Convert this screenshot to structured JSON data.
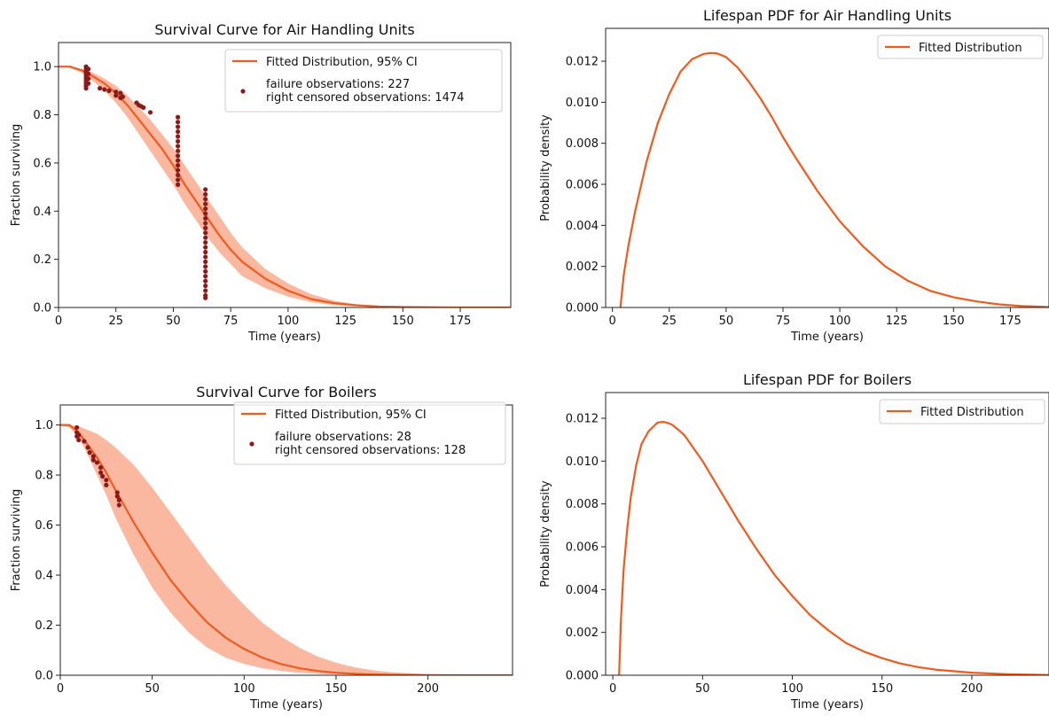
{
  "colors": {
    "fit_line": "#f05a1e",
    "ci_band": "#fbb8a0",
    "points": "#8b1a1a"
  },
  "chart_data": [
    {
      "type": "line",
      "title": "Survival Curve for Air Handling Units",
      "xlabel": "Time (years)",
      "ylabel": "Fraction surviving",
      "xlim": [
        0,
        197
      ],
      "ylim": [
        0,
        1.1
      ],
      "xticks": [
        0,
        25,
        50,
        75,
        100,
        125,
        150,
        175
      ],
      "yticks": [
        0.0,
        0.2,
        0.4,
        0.6,
        0.8,
        1.0
      ],
      "legend_location": "top-right",
      "legend": [
        {
          "kind": "line",
          "text": "Fitted Distribution, 95% CI"
        },
        {
          "kind": "point",
          "text": "failure observations: 227",
          "text2": "right censored observations: 1474"
        }
      ],
      "series": [
        {
          "name": "Fitted Distribution",
          "x": [
            0,
            5,
            10,
            15,
            20,
            25,
            30,
            35,
            40,
            45,
            50,
            55,
            60,
            65,
            70,
            75,
            80,
            90,
            100,
            110,
            120,
            130,
            140,
            150,
            160,
            175,
            197
          ],
          "y": [
            1.0,
            1.0,
            0.985,
            0.96,
            0.93,
            0.89,
            0.84,
            0.78,
            0.72,
            0.66,
            0.59,
            0.51,
            0.44,
            0.37,
            0.3,
            0.24,
            0.19,
            0.12,
            0.07,
            0.035,
            0.018,
            0.009,
            0.004,
            0.002,
            0.001,
            0.0,
            0.0
          ]
        },
        {
          "name": "95% CI upper",
          "x": [
            0,
            5,
            10,
            15,
            20,
            25,
            30,
            35,
            40,
            45,
            50,
            55,
            60,
            65,
            70,
            75,
            80,
            90,
            100,
            110,
            120,
            130,
            140,
            150,
            160,
            175,
            197
          ],
          "y": [
            1.0,
            1.0,
            0.99,
            0.975,
            0.95,
            0.92,
            0.88,
            0.83,
            0.78,
            0.72,
            0.66,
            0.59,
            0.52,
            0.45,
            0.38,
            0.31,
            0.25,
            0.16,
            0.1,
            0.055,
            0.028,
            0.013,
            0.006,
            0.003,
            0.001,
            0.0,
            0.0
          ]
        },
        {
          "name": "95% CI lower",
          "x": [
            0,
            5,
            10,
            15,
            20,
            25,
            30,
            35,
            40,
            45,
            50,
            55,
            60,
            65,
            70,
            75,
            80,
            90,
            100,
            110,
            120,
            130,
            140,
            150,
            160,
            175,
            197
          ],
          "y": [
            1.0,
            0.995,
            0.975,
            0.94,
            0.9,
            0.85,
            0.79,
            0.72,
            0.65,
            0.58,
            0.51,
            0.43,
            0.36,
            0.29,
            0.23,
            0.18,
            0.13,
            0.08,
            0.045,
            0.022,
            0.01,
            0.004,
            0.002,
            0.001,
            0.0,
            0.0,
            0.0
          ]
        }
      ],
      "scatter": [
        {
          "x": 12,
          "y": [
            1.0,
            0.99,
            0.98,
            0.97,
            0.96,
            0.95,
            0.94,
            0.93,
            0.92,
            0.91
          ]
        },
        {
          "x": 13,
          "y": [
            0.99,
            0.97,
            0.95,
            0.93
          ]
        },
        {
          "x": 18,
          "y": [
            0.91
          ]
        },
        {
          "x": 20,
          "y": [
            0.905
          ]
        },
        {
          "x": 22,
          "y": [
            0.9
          ]
        },
        {
          "x": 25,
          "y": [
            0.895,
            0.88
          ]
        },
        {
          "x": 27,
          "y": [
            0.89,
            0.87
          ]
        },
        {
          "x": 28,
          "y": [
            0.875
          ]
        },
        {
          "x": 34,
          "y": [
            0.85
          ]
        },
        {
          "x": 35,
          "y": [
            0.84
          ]
        },
        {
          "x": 36,
          "y": [
            0.835
          ]
        },
        {
          "x": 37,
          "y": [
            0.83
          ]
        },
        {
          "x": 40,
          "y": [
            0.81
          ]
        },
        {
          "x": 52,
          "y": [
            0.79,
            0.77,
            0.75,
            0.73,
            0.71,
            0.69,
            0.67,
            0.65,
            0.63,
            0.61,
            0.59,
            0.57,
            0.55,
            0.53,
            0.51
          ]
        },
        {
          "x": 64,
          "y": [
            0.49,
            0.47,
            0.45,
            0.43,
            0.41,
            0.39,
            0.37,
            0.35,
            0.33,
            0.31,
            0.29,
            0.27,
            0.25,
            0.23,
            0.21,
            0.19,
            0.17,
            0.15,
            0.13,
            0.11,
            0.09,
            0.07,
            0.05,
            0.04
          ]
        }
      ]
    },
    {
      "type": "line",
      "title": "Lifespan PDF for Air Handling Units",
      "xlabel": "Time (years)",
      "ylabel": "Probability density",
      "xlim": [
        -3,
        192
      ],
      "ylim": [
        0,
        0.0136
      ],
      "xticks": [
        0,
        25,
        50,
        75,
        100,
        125,
        150,
        175
      ],
      "yticks": [
        0.0,
        0.002,
        0.004,
        0.006,
        0.008,
        0.01,
        0.012
      ],
      "ytick_labels": [
        "0.000",
        "0.002",
        "0.004",
        "0.006",
        "0.008",
        "0.010",
        "0.012"
      ],
      "legend_location": "top-right",
      "legend": [
        {
          "kind": "line",
          "text": "Fitted Distribution"
        }
      ],
      "series": [
        {
          "name": "Fitted Distribution",
          "x": [
            3.5,
            5,
            7,
            10,
            15,
            20,
            25,
            30,
            35,
            40,
            43,
            46,
            50,
            55,
            60,
            65,
            70,
            75,
            80,
            90,
            100,
            110,
            120,
            130,
            140,
            150,
            160,
            170,
            180,
            192
          ],
          "y": [
            0.0,
            0.0016,
            0.003,
            0.0047,
            0.0071,
            0.009,
            0.0104,
            0.0115,
            0.0121,
            0.01235,
            0.0124,
            0.01238,
            0.0122,
            0.0117,
            0.011,
            0.0102,
            0.0093,
            0.0083,
            0.0074,
            0.0057,
            0.0042,
            0.003,
            0.002,
            0.0013,
            0.0008,
            0.0005,
            0.0003,
            0.00015,
            7e-05,
            2e-05
          ]
        }
      ]
    },
    {
      "type": "line",
      "title": "Survival Curve for Boilers",
      "xlabel": "Time (years)",
      "ylabel": "Fraction surviving",
      "xlim": [
        0,
        246
      ],
      "ylim": [
        0,
        1.08
      ],
      "xticks": [
        0,
        50,
        100,
        150,
        200
      ],
      "yticks": [
        0.0,
        0.2,
        0.4,
        0.6,
        0.8,
        1.0
      ],
      "legend_location": "top-right",
      "legend": [
        {
          "kind": "line",
          "text": "Fitted Distribution, 95% CI"
        },
        {
          "kind": "point",
          "text": "failure observations: 28",
          "text2": "right censored observations: 128"
        }
      ],
      "series": [
        {
          "name": "Fitted Distribution",
          "x": [
            0,
            5,
            10,
            15,
            20,
            25,
            30,
            40,
            50,
            60,
            70,
            80,
            90,
            100,
            110,
            120,
            130,
            140,
            150,
            160,
            170,
            180,
            200,
            220,
            246
          ],
          "y": [
            1.0,
            1.0,
            0.97,
            0.92,
            0.87,
            0.81,
            0.74,
            0.61,
            0.49,
            0.38,
            0.29,
            0.21,
            0.15,
            0.105,
            0.07,
            0.045,
            0.028,
            0.017,
            0.01,
            0.006,
            0.003,
            0.002,
            0.0005,
            0.0001,
            0.0
          ]
        },
        {
          "name": "95% CI upper",
          "x": [
            0,
            5,
            10,
            15,
            20,
            25,
            30,
            40,
            50,
            60,
            70,
            80,
            90,
            100,
            110,
            120,
            130,
            140,
            150,
            160,
            170,
            180,
            200,
            220,
            246
          ],
          "y": [
            1.0,
            1.0,
            0.995,
            0.98,
            0.965,
            0.94,
            0.91,
            0.84,
            0.75,
            0.65,
            0.55,
            0.45,
            0.36,
            0.28,
            0.21,
            0.155,
            0.11,
            0.075,
            0.05,
            0.032,
            0.02,
            0.012,
            0.004,
            0.001,
            0.0
          ]
        },
        {
          "name": "95% CI lower",
          "x": [
            0,
            5,
            10,
            15,
            20,
            25,
            30,
            40,
            50,
            60,
            70,
            80,
            90,
            100,
            110,
            120,
            130,
            140,
            150,
            160,
            170,
            180,
            200,
            220,
            246
          ],
          "y": [
            1.0,
            0.99,
            0.95,
            0.88,
            0.8,
            0.72,
            0.63,
            0.48,
            0.35,
            0.25,
            0.17,
            0.11,
            0.07,
            0.045,
            0.028,
            0.017,
            0.01,
            0.006,
            0.003,
            0.002,
            0.001,
            0.0,
            0.0,
            0.0,
            0.0
          ]
        }
      ],
      "scatter": [
        {
          "x": 9,
          "y": [
            0.99,
            0.97,
            0.955
          ]
        },
        {
          "x": 10,
          "y": [
            0.96,
            0.94
          ]
        },
        {
          "x": 13,
          "y": [
            0.935
          ]
        },
        {
          "x": 15,
          "y": [
            0.91
          ]
        },
        {
          "x": 16,
          "y": [
            0.89
          ]
        },
        {
          "x": 18,
          "y": [
            0.875,
            0.86
          ]
        },
        {
          "x": 20,
          "y": [
            0.85
          ]
        },
        {
          "x": 22,
          "y": [
            0.83,
            0.81
          ]
        },
        {
          "x": 23,
          "y": [
            0.795
          ]
        },
        {
          "x": 25,
          "y": [
            0.78,
            0.76
          ]
        },
        {
          "x": 31,
          "y": [
            0.73,
            0.715
          ]
        },
        {
          "x": 32,
          "y": [
            0.7,
            0.68
          ]
        }
      ]
    },
    {
      "type": "line",
      "title": "Lifespan PDF for Boilers",
      "xlabel": "Time (years)",
      "ylabel": "Probability density",
      "xlim": [
        -4,
        243
      ],
      "ylim": [
        0,
        0.0132
      ],
      "xticks": [
        0,
        50,
        100,
        150,
        200
      ],
      "yticks": [
        0.0,
        0.002,
        0.004,
        0.006,
        0.008,
        0.01,
        0.012
      ],
      "ytick_labels": [
        "0.000",
        "0.002",
        "0.004",
        "0.006",
        "0.008",
        "0.010",
        "0.012"
      ],
      "legend_location": "top-right",
      "legend": [
        {
          "kind": "line",
          "text": "Fitted Distribution"
        }
      ],
      "series": [
        {
          "name": "Fitted Distribution",
          "x": [
            3.5,
            4.5,
            6,
            8,
            10,
            13,
            16,
            20,
            25,
            28,
            30,
            33,
            36,
            40,
            50,
            60,
            70,
            80,
            90,
            100,
            110,
            120,
            130,
            140,
            150,
            160,
            170,
            180,
            200,
            220,
            243
          ],
          "y": [
            0.0,
            0.0025,
            0.0049,
            0.0068,
            0.0083,
            0.0098,
            0.0108,
            0.0114,
            0.0118,
            0.01183,
            0.0118,
            0.0117,
            0.0115,
            0.0112,
            0.01,
            0.0086,
            0.0072,
            0.0059,
            0.0047,
            0.0037,
            0.0028,
            0.0021,
            0.0015,
            0.0011,
            0.0008,
            0.00055,
            0.00038,
            0.00026,
            0.00012,
            5e-05,
            1e-05
          ]
        }
      ]
    }
  ]
}
